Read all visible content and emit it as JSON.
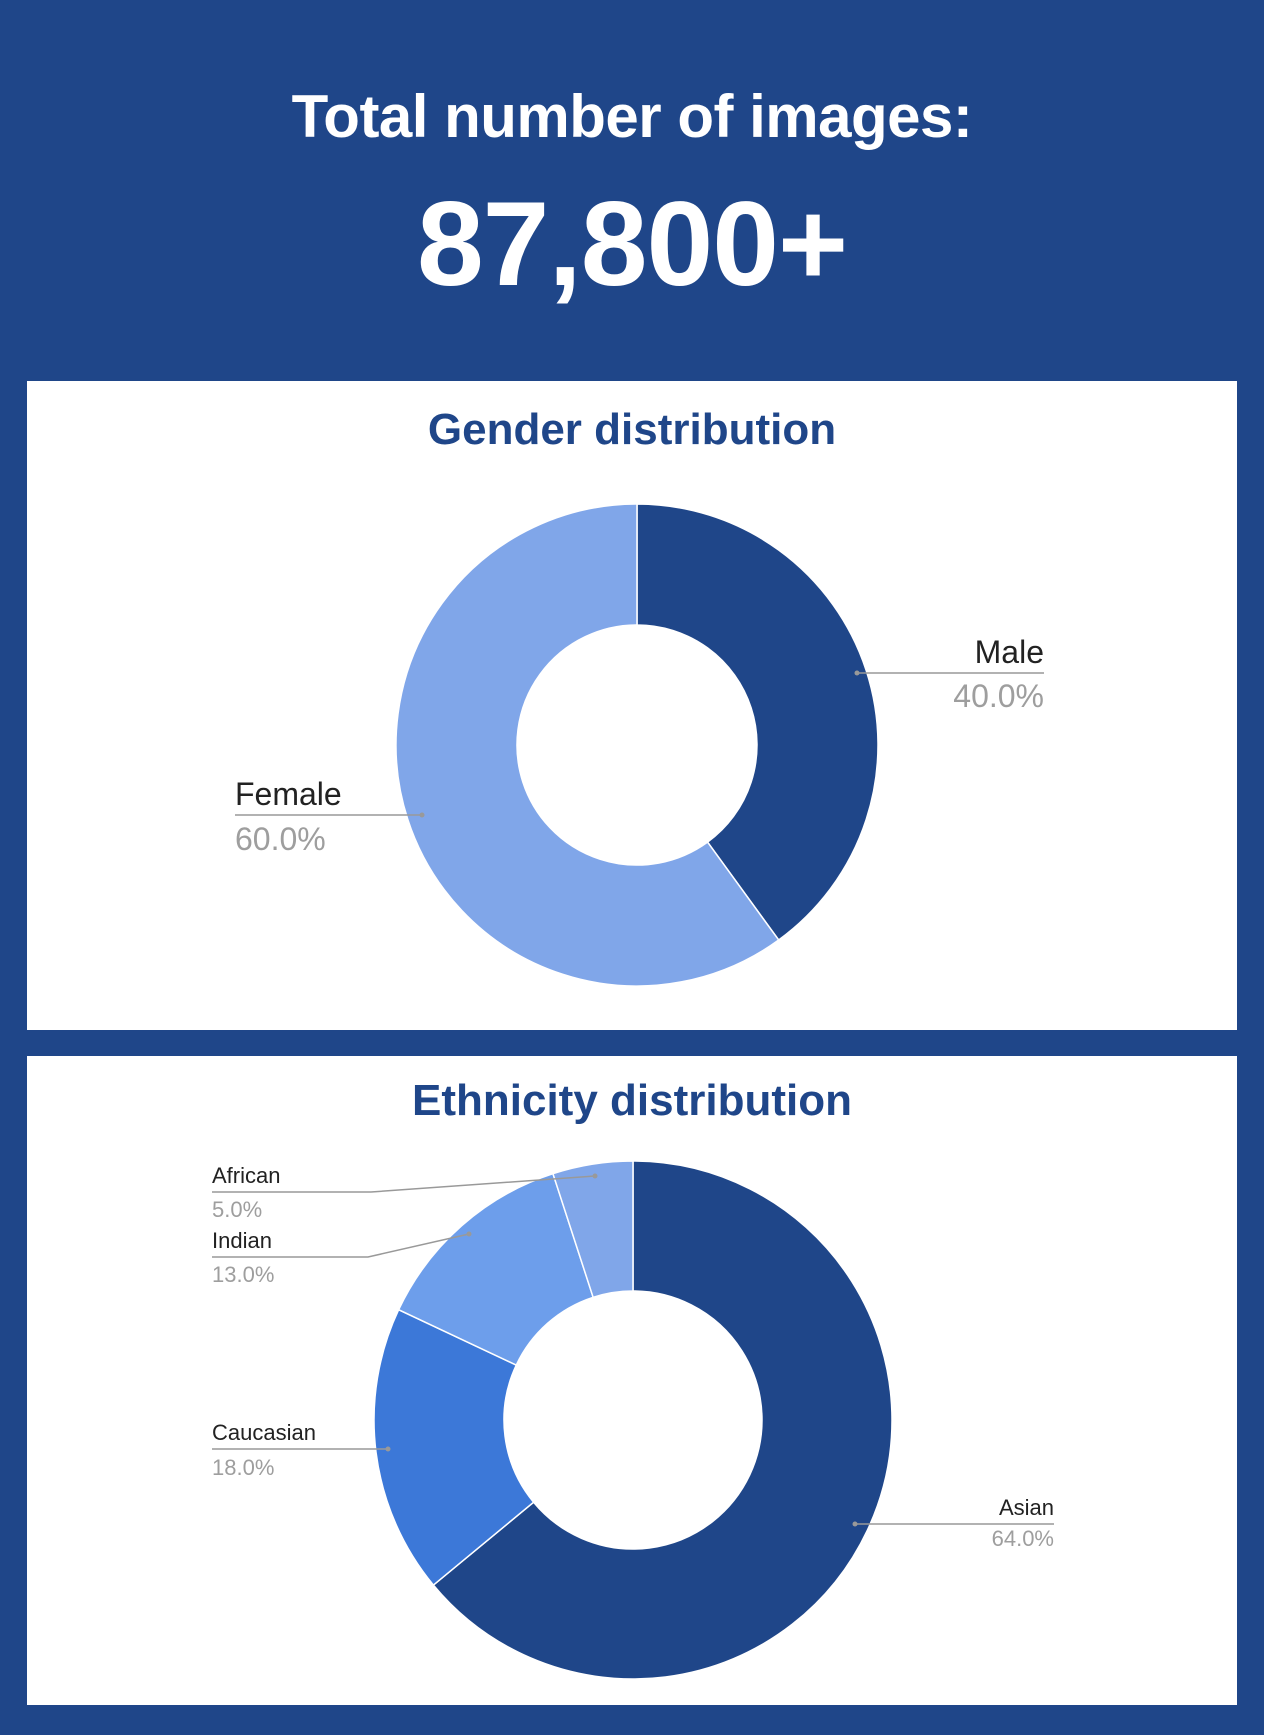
{
  "header": {
    "title": "Total number of images:",
    "total": "87,800+"
  },
  "chart_data": [
    {
      "type": "pie",
      "title": "Gender distribution",
      "donut": true,
      "series": [
        {
          "name": "Male",
          "value": 40.0,
          "label": "40.0%",
          "color": "#1f4689"
        },
        {
          "name": "Female",
          "value": 60.0,
          "label": "60.0%",
          "color": "#80a6e9"
        }
      ]
    },
    {
      "type": "pie",
      "title": "Ethnicity distribution",
      "donut": true,
      "series": [
        {
          "name": "Asian",
          "value": 64.0,
          "label": "64.0%",
          "color": "#1f4689"
        },
        {
          "name": "Caucasian",
          "value": 18.0,
          "label": "18.0%",
          "color": "#3c78d8"
        },
        {
          "name": "Indian",
          "value": 13.0,
          "label": "13.0%",
          "color": "#6d9eeb"
        },
        {
          "name": "African",
          "value": 5.0,
          "label": "5.0%",
          "color": "#80a6e9"
        }
      ]
    }
  ]
}
